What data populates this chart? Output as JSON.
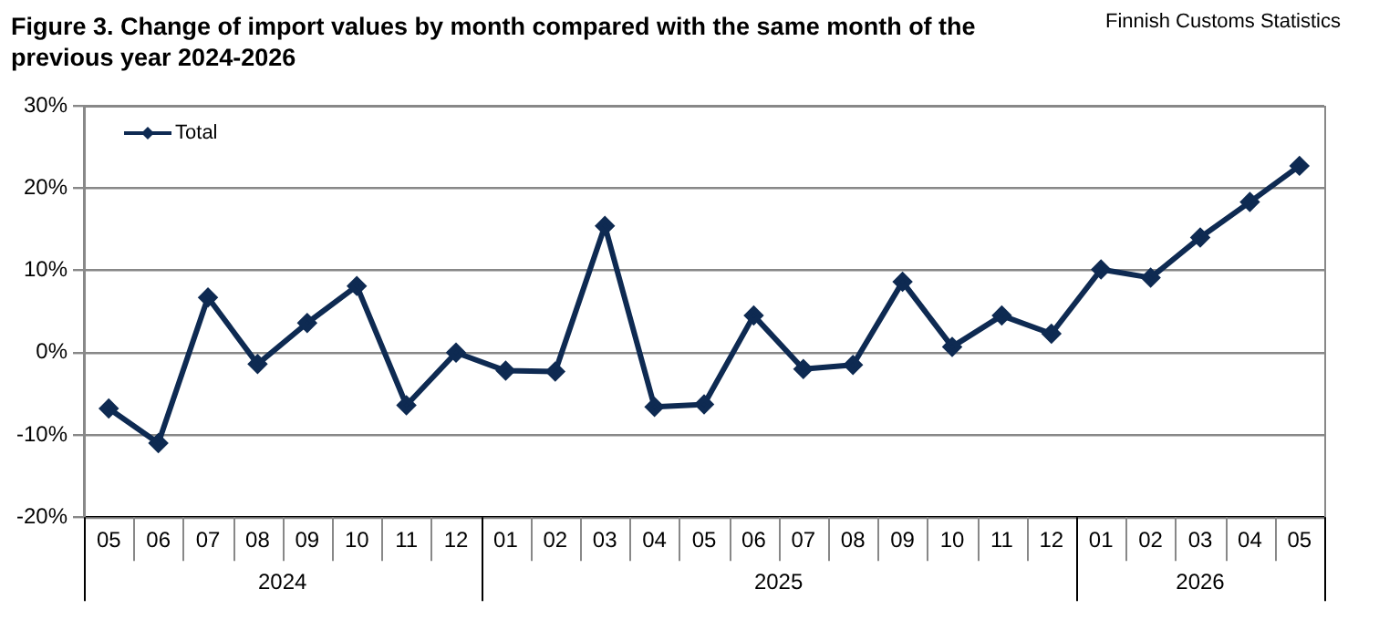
{
  "chart_data": {
    "type": "line",
    "title": "Figure 3. Change of import values by month compared with the same month of the previous year 2024-2026",
    "categories": [
      "05",
      "06",
      "07",
      "08",
      "09",
      "10",
      "11",
      "12",
      "01",
      "02",
      "03",
      "04",
      "05",
      "06",
      "07",
      "08",
      "09",
      "10",
      "11",
      "12",
      "01",
      "02",
      "03",
      "04",
      "05"
    ],
    "series": [
      {
        "name": "Total",
        "color": "#0e2a52",
        "values": [
          -6.8,
          -11.0,
          6.7,
          -1.4,
          3.6,
          8.1,
          -6.4,
          0,
          -2.2,
          -2.3,
          15.4,
          -6.6,
          -6.3,
          4.5,
          -2.0,
          -1.5,
          8.6,
          0.7,
          4.5,
          2.3,
          10.1,
          9.1,
          14.0,
          18.3,
          22.7
        ]
      }
    ],
    "ylim": [
      -20,
      30
    ],
    "yticks": [
      {
        "value": -20,
        "label": "-20%"
      },
      {
        "value": -10,
        "label": "-10%"
      },
      {
        "value": 0,
        "label": "0%"
      },
      {
        "value": 10,
        "label": "10%"
      },
      {
        "value": 20,
        "label": "20%"
      },
      {
        "value": 30,
        "label": "30%"
      }
    ],
    "annotations": [
      "2024",
      "2025",
      "2026",
      "Finnish Customs Statistics"
    ],
    "grid": "y",
    "legend": "top left",
    "marker": "diamond",
    "line_style": "solid"
  }
}
